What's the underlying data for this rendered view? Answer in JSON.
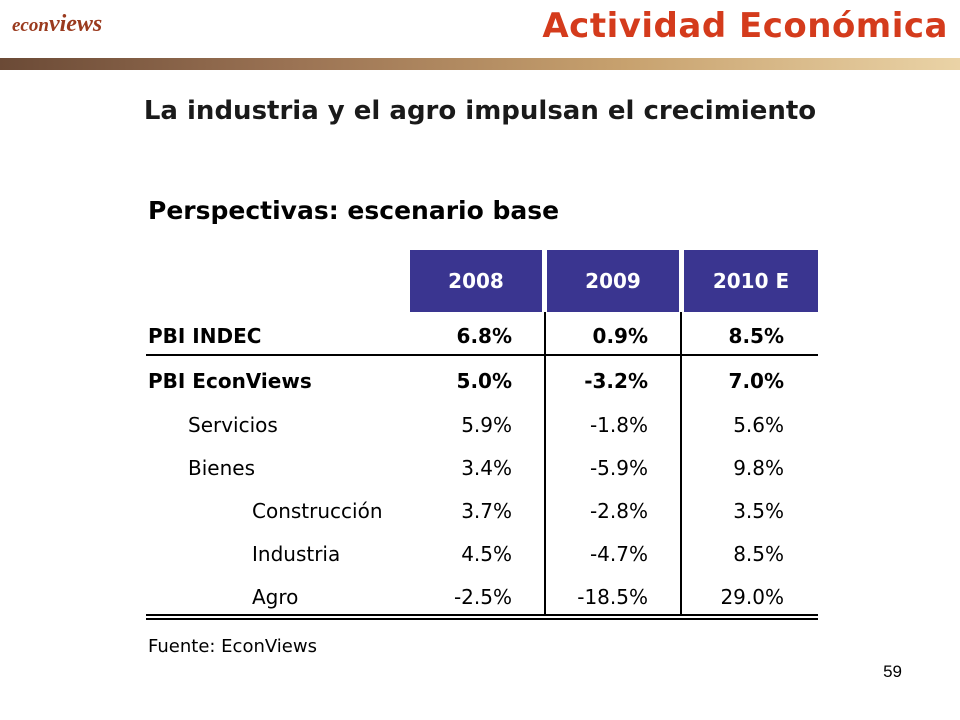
{
  "header": {
    "logo_prefix": "econ",
    "logo_suffix": "views",
    "title": "Actividad Económica"
  },
  "slide": {
    "title": "La industria y el agro impulsan el crecimiento",
    "page_number": "59"
  },
  "table": {
    "title": "Perspectivas: escenario base",
    "columns": [
      "2008",
      "2009",
      "2010 E"
    ],
    "header_color": "#3a3590",
    "rows": [
      {
        "label": "PBI INDEC",
        "values": [
          "6.8%",
          "0.9%",
          "8.5%"
        ]
      },
      {
        "label": "PBI EconViews",
        "values": [
          "5.0%",
          "-3.2%",
          "7.0%"
        ]
      },
      {
        "label": "Servicios",
        "values": [
          "5.9%",
          "-1.8%",
          "5.6%"
        ]
      },
      {
        "label": "Bienes",
        "values": [
          "3.4%",
          "-5.9%",
          "9.8%"
        ]
      },
      {
        "label": "Construcción",
        "values": [
          "3.7%",
          "-2.8%",
          "3.5%"
        ]
      },
      {
        "label": "Industria",
        "values": [
          "4.5%",
          "-4.7%",
          "8.5%"
        ]
      },
      {
        "label": "Agro",
        "values": [
          "-2.5%",
          "-18.5%",
          "29.0%"
        ]
      }
    ],
    "source": "Fuente: EconViews"
  }
}
